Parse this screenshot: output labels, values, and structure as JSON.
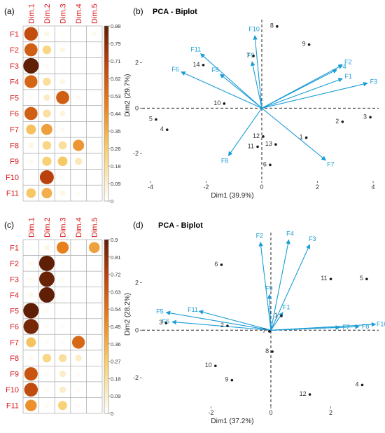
{
  "panel_labels": [
    "(a)",
    "(b)",
    "(c)",
    "(d)"
  ],
  "colors": {
    "arrow": "#1a9cd6",
    "point": "#1a1a1a",
    "row_label": "#d7191c",
    "grid": "#b0b0b0"
  },
  "chart_data": [
    {
      "type": "heatmap",
      "panel": "(a)",
      "rows": [
        "F1",
        "F2",
        "F3",
        "F4",
        "F5",
        "F6",
        "F7",
        "F8",
        "F9",
        "F10",
        "F11"
      ],
      "columns": [
        "Dim.1",
        "Dim.2",
        "Dim.3",
        "Dim.4",
        "Dim.5"
      ],
      "values": [
        [
          66,
          5,
          1,
          0,
          3
        ],
        [
          60,
          22,
          5,
          0,
          0
        ],
        [
          88,
          2,
          1,
          0,
          0
        ],
        [
          58,
          18,
          5,
          0,
          0
        ],
        [
          2,
          10,
          60,
          3,
          1
        ],
        [
          60,
          17,
          6,
          0,
          0
        ],
        [
          30,
          40,
          3,
          0,
          0
        ],
        [
          5,
          22,
          18,
          42,
          0
        ],
        [
          3,
          25,
          28,
          13,
          0
        ],
        [
          1,
          70,
          2,
          0,
          0
        ],
        [
          28,
          35,
          5,
          2,
          0
        ]
      ],
      "colorbar_ticks": [
        "0",
        "0.09",
        "0.18",
        "0.26",
        "0.35",
        "0.44",
        "0.53",
        "0.62",
        "0.71",
        "0.79",
        "0.88"
      ],
      "colorbar_range": [
        0,
        88
      ]
    },
    {
      "type": "scatter",
      "panel": "(b)",
      "title": "PCA - Biplot",
      "xlabel": "Dim1 (39.9%)",
      "ylabel": "Dim2 (29.7%)",
      "xlim": [
        -4.3,
        4.2
      ],
      "ylim": [
        -3.2,
        3.9
      ],
      "xticks": [
        -4,
        -2,
        0,
        2,
        4
      ],
      "yticks": [
        -2,
        0,
        2
      ],
      "xtick_labels": [
        "-4",
        "-2",
        "0",
        "2",
        "4"
      ],
      "ytick_labels": [
        "-2",
        "0",
        "2"
      ],
      "points": [
        {
          "label": "1",
          "x": 1.6,
          "y": -1.3
        },
        {
          "label": "2",
          "x": 2.9,
          "y": -0.6
        },
        {
          "label": "3",
          "x": 3.9,
          "y": -0.4
        },
        {
          "label": "4",
          "x": -3.4,
          "y": -0.95
        },
        {
          "label": "5",
          "x": -3.8,
          "y": -0.5
        },
        {
          "label": "6",
          "x": 0.3,
          "y": -2.5
        },
        {
          "label": "7",
          "x": -0.3,
          "y": 2.3
        },
        {
          "label": "8",
          "x": 0.55,
          "y": 3.6
        },
        {
          "label": "9",
          "x": 1.7,
          "y": 2.8
        },
        {
          "label": "10",
          "x": -1.35,
          "y": 0.2
        },
        {
          "label": "11",
          "x": -0.15,
          "y": -1.7
        },
        {
          "label": "12",
          "x": 0.05,
          "y": -1.25
        },
        {
          "label": "13",
          "x": 0.5,
          "y": -1.6
        },
        {
          "label": "14",
          "x": -2.1,
          "y": 1.9
        }
      ],
      "arrows": [
        {
          "label": "F1",
          "x": 2.9,
          "y": 1.3
        },
        {
          "label": "F2",
          "x": 2.9,
          "y": 1.9
        },
        {
          "label": "F3",
          "x": 3.8,
          "y": 1.1
        },
        {
          "label": "F4",
          "x": 2.7,
          "y": 1.7
        },
        {
          "label": "F5",
          "x": -1.5,
          "y": 1.5
        },
        {
          "label": "F6",
          "x": -2.9,
          "y": 1.6
        },
        {
          "label": "F7",
          "x": 2.3,
          "y": -2.3
        },
        {
          "label": "F8",
          "x": -1.2,
          "y": -2.1
        },
        {
          "label": "F9",
          "x": -0.35,
          "y": 2.05
        },
        {
          "label": "F10",
          "x": -0.25,
          "y": 3.2
        },
        {
          "label": "F11",
          "x": -2.2,
          "y": 2.4
        }
      ]
    },
    {
      "type": "heatmap",
      "panel": "(c)",
      "rows": [
        "F1",
        "F2",
        "F3",
        "F4",
        "F5",
        "F6",
        "F7",
        "F8",
        "F9",
        "F10",
        "F11"
      ],
      "columns": [
        "Dim.1",
        "Dim.2",
        "Dim.3",
        "Dim.4",
        "Dim.5"
      ],
      "values": [
        [
          1,
          5,
          50,
          1,
          40
        ],
        [
          3,
          90,
          2,
          0,
          0
        ],
        [
          3,
          88,
          3,
          0,
          0
        ],
        [
          4,
          90,
          2,
          0,
          0
        ],
        [
          90,
          3,
          1,
          0,
          0
        ],
        [
          85,
          2,
          2,
          1,
          0
        ],
        [
          30,
          2,
          2,
          58,
          0
        ],
        [
          3,
          22,
          18,
          10,
          0
        ],
        [
          65,
          2,
          10,
          2,
          0
        ],
        [
          68,
          2,
          10,
          2,
          0
        ],
        [
          45,
          3,
          25,
          2,
          0
        ]
      ],
      "colorbar_ticks": [
        "0",
        "0.09",
        "0.18",
        "0.27",
        "0.36",
        "0.45",
        "0.54",
        "0.63",
        "0.72",
        "0.81",
        "0.9"
      ],
      "colorbar_range": [
        0,
        90
      ]
    },
    {
      "type": "scatter",
      "panel": "(d)",
      "title": "PCA - Biplot",
      "xlabel": "Dim1 (37.2%)",
      "ylabel": "Dim2 (28.2%)",
      "xlim": [
        -4.3,
        3.6
      ],
      "ylim": [
        -3.2,
        4.1
      ],
      "xticks": [
        -2,
        0,
        2
      ],
      "yticks": [
        -2,
        0,
        2
      ],
      "xtick_labels": [
        "-2",
        "0",
        "2"
      ],
      "ytick_labels": [
        "-2",
        "0",
        "2"
      ],
      "points": [
        {
          "label": "1",
          "x": 0.35,
          "y": 0.6
        },
        {
          "label": "2",
          "x": -1.45,
          "y": 0.18
        },
        {
          "label": "3",
          "x": -3.5,
          "y": 0.3
        },
        {
          "label": "4",
          "x": 3.05,
          "y": -2.3
        },
        {
          "label": "5",
          "x": 3.2,
          "y": 2.15
        },
        {
          "label": "6",
          "x": -1.65,
          "y": 2.75
        },
        {
          "label": "7",
          "x": -0.05,
          "y": -0.05
        },
        {
          "label": "8",
          "x": 0.05,
          "y": -0.9
        },
        {
          "label": "9",
          "x": -1.3,
          "y": -2.1
        },
        {
          "label": "10",
          "x": -1.85,
          "y": -1.5
        },
        {
          "label": "11",
          "x": 2.0,
          "y": 2.15
        },
        {
          "label": "12",
          "x": 1.3,
          "y": -2.7
        }
      ],
      "arrows": [
        {
          "label": "F1",
          "x": 0.4,
          "y": 0.75
        },
        {
          "label": "F2",
          "x": -0.35,
          "y": 3.7
        },
        {
          "label": "F3",
          "x": 1.3,
          "y": 3.6
        },
        {
          "label": "F4",
          "x": 0.6,
          "y": 3.8
        },
        {
          "label": "F5",
          "x": -3.5,
          "y": 0.75
        },
        {
          "label": "F6",
          "x": -3.3,
          "y": 0.35
        },
        {
          "label": "F7",
          "x": 2.3,
          "y": 0.12
        },
        {
          "label": "F8",
          "x": 2.95,
          "y": 0.15
        },
        {
          "label": "F9",
          "x": -0.05,
          "y": 1.5
        },
        {
          "label": "F10",
          "x": 3.5,
          "y": 0.25
        },
        {
          "label": "F11",
          "x": -2.4,
          "y": 0.8
        }
      ]
    }
  ]
}
